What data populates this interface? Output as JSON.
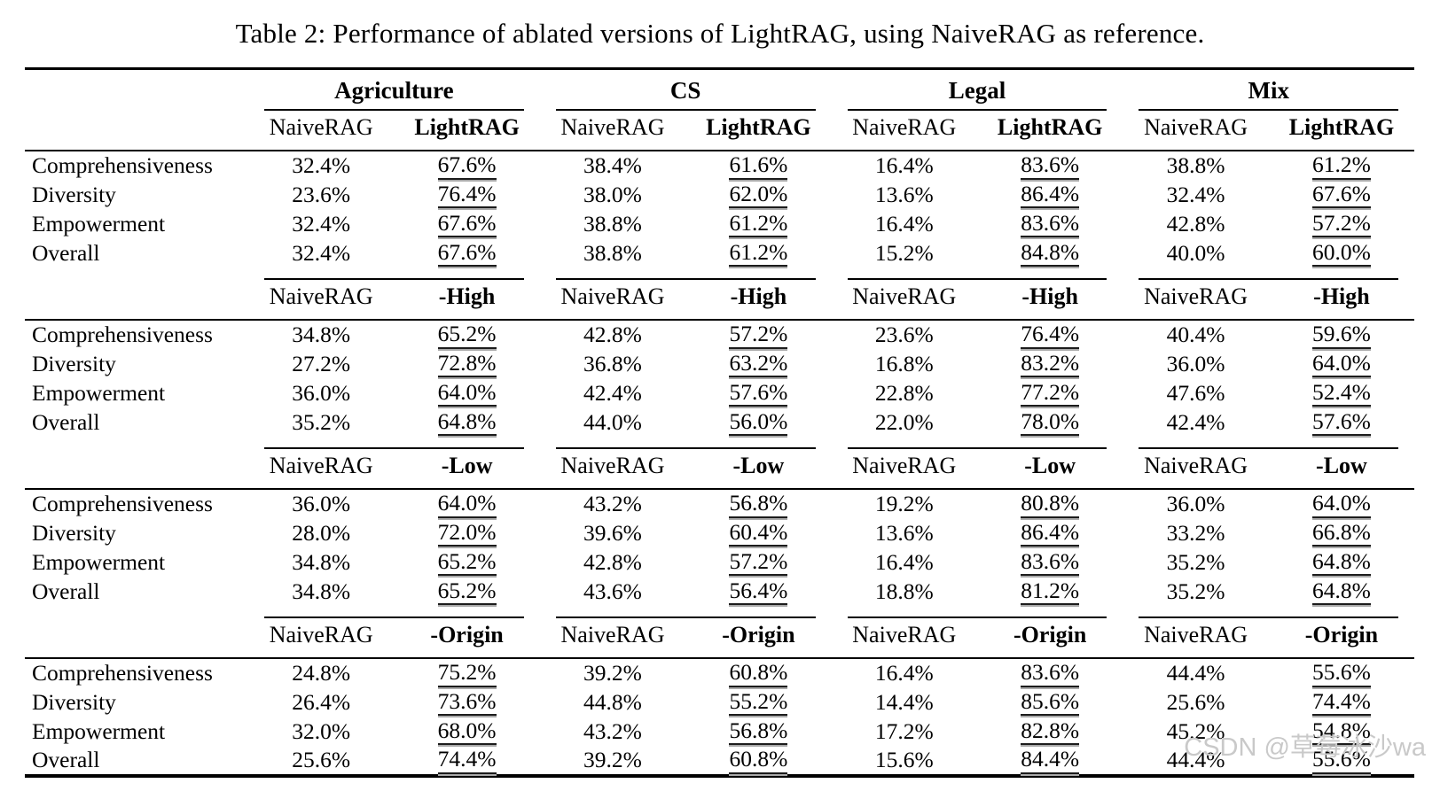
{
  "title": "Table 2: Performance of ablated versions of LightRAG, using NaiveRAG as reference.",
  "watermark": {
    "text": "CSDN @草莓冰沙wa",
    "color": "#c9c9c9"
  },
  "table": {
    "groups": [
      "Agriculture",
      "CS",
      "Legal",
      "Mix"
    ],
    "metrics": [
      "Comprehensiveness",
      "Diversity",
      "Empowerment",
      "Overall"
    ],
    "sections": [
      {
        "baseline_label": "NaiveRAG",
        "variant_label": "LightRAG",
        "rows": [
          {
            "metric": "Comprehensiveness",
            "values": [
              [
                "32.4%",
                "67.6%"
              ],
              [
                "38.4%",
                "61.6%"
              ],
              [
                "16.4%",
                "83.6%"
              ],
              [
                "38.8%",
                "61.2%"
              ]
            ]
          },
          {
            "metric": "Diversity",
            "values": [
              [
                "23.6%",
                "76.4%"
              ],
              [
                "38.0%",
                "62.0%"
              ],
              [
                "13.6%",
                "86.4%"
              ],
              [
                "32.4%",
                "67.6%"
              ]
            ]
          },
          {
            "metric": "Empowerment",
            "values": [
              [
                "32.4%",
                "67.6%"
              ],
              [
                "38.8%",
                "61.2%"
              ],
              [
                "16.4%",
                "83.6%"
              ],
              [
                "42.8%",
                "57.2%"
              ]
            ]
          },
          {
            "metric": "Overall",
            "values": [
              [
                "32.4%",
                "67.6%"
              ],
              [
                "38.8%",
                "61.2%"
              ],
              [
                "15.2%",
                "84.8%"
              ],
              [
                "40.0%",
                "60.0%"
              ]
            ]
          }
        ]
      },
      {
        "baseline_label": "NaiveRAG",
        "variant_label": "-High",
        "rows": [
          {
            "metric": "Comprehensiveness",
            "values": [
              [
                "34.8%",
                "65.2%"
              ],
              [
                "42.8%",
                "57.2%"
              ],
              [
                "23.6%",
                "76.4%"
              ],
              [
                "40.4%",
                "59.6%"
              ]
            ]
          },
          {
            "metric": "Diversity",
            "values": [
              [
                "27.2%",
                "72.8%"
              ],
              [
                "36.8%",
                "63.2%"
              ],
              [
                "16.8%",
                "83.2%"
              ],
              [
                "36.0%",
                "64.0%"
              ]
            ]
          },
          {
            "metric": "Empowerment",
            "values": [
              [
                "36.0%",
                "64.0%"
              ],
              [
                "42.4%",
                "57.6%"
              ],
              [
                "22.8%",
                "77.2%"
              ],
              [
                "47.6%",
                "52.4%"
              ]
            ]
          },
          {
            "metric": "Overall",
            "values": [
              [
                "35.2%",
                "64.8%"
              ],
              [
                "44.0%",
                "56.0%"
              ],
              [
                "22.0%",
                "78.0%"
              ],
              [
                "42.4%",
                "57.6%"
              ]
            ]
          }
        ]
      },
      {
        "baseline_label": "NaiveRAG",
        "variant_label": "-Low",
        "rows": [
          {
            "metric": "Comprehensiveness",
            "values": [
              [
                "36.0%",
                "64.0%"
              ],
              [
                "43.2%",
                "56.8%"
              ],
              [
                "19.2%",
                "80.8%"
              ],
              [
                "36.0%",
                "64.0%"
              ]
            ]
          },
          {
            "metric": "Diversity",
            "values": [
              [
                "28.0%",
                "72.0%"
              ],
              [
                "39.6%",
                "60.4%"
              ],
              [
                "13.6%",
                "86.4%"
              ],
              [
                "33.2%",
                "66.8%"
              ]
            ]
          },
          {
            "metric": "Empowerment",
            "values": [
              [
                "34.8%",
                "65.2%"
              ],
              [
                "42.8%",
                "57.2%"
              ],
              [
                "16.4%",
                "83.6%"
              ],
              [
                "35.2%",
                "64.8%"
              ]
            ]
          },
          {
            "metric": "Overall",
            "values": [
              [
                "34.8%",
                "65.2%"
              ],
              [
                "43.6%",
                "56.4%"
              ],
              [
                "18.8%",
                "81.2%"
              ],
              [
                "35.2%",
                "64.8%"
              ]
            ]
          }
        ]
      },
      {
        "baseline_label": "NaiveRAG",
        "variant_label": "-Origin",
        "rows": [
          {
            "metric": "Comprehensiveness",
            "values": [
              [
                "24.8%",
                "75.2%"
              ],
              [
                "39.2%",
                "60.8%"
              ],
              [
                "16.4%",
                "83.6%"
              ],
              [
                "44.4%",
                "55.6%"
              ]
            ]
          },
          {
            "metric": "Diversity",
            "values": [
              [
                "26.4%",
                "73.6%"
              ],
              [
                "44.8%",
                "55.2%"
              ],
              [
                "14.4%",
                "85.6%"
              ],
              [
                "25.6%",
                "74.4%"
              ]
            ]
          },
          {
            "metric": "Empowerment",
            "values": [
              [
                "32.0%",
                "68.0%"
              ],
              [
                "43.2%",
                "56.8%"
              ],
              [
                "17.2%",
                "82.8%"
              ],
              [
                "45.2%",
                "54.8%"
              ]
            ]
          },
          {
            "metric": "Overall",
            "values": [
              [
                "25.6%",
                "74.4%"
              ],
              [
                "39.2%",
                "60.8%"
              ],
              [
                "15.6%",
                "84.4%"
              ],
              [
                "44.4%",
                "55.6%"
              ]
            ]
          }
        ]
      }
    ]
  }
}
